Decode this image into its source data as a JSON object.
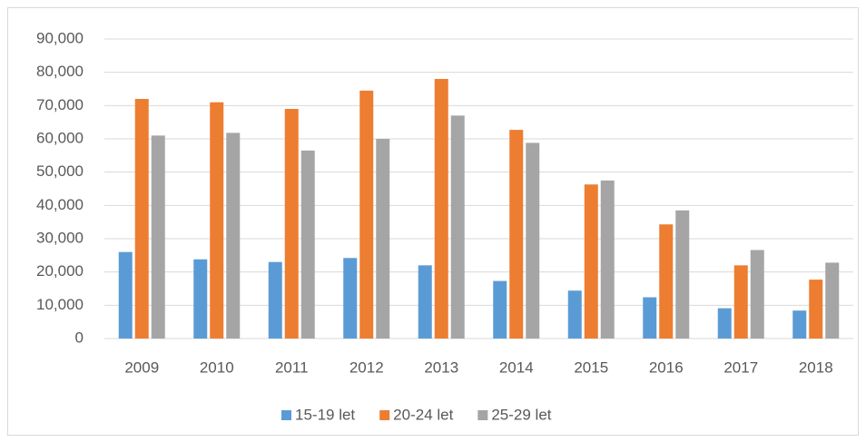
{
  "chart_data": {
    "type": "bar",
    "categories": [
      "2009",
      "2010",
      "2011",
      "2012",
      "2013",
      "2014",
      "2015",
      "2016",
      "2017",
      "2018"
    ],
    "series": [
      {
        "name": "15-19 let",
        "color": "#5b9bd5",
        "values": [
          26000,
          23800,
          23000,
          24200,
          22000,
          17300,
          14400,
          12400,
          9100,
          8400
        ]
      },
      {
        "name": "20-24 let",
        "color": "#ed7d31",
        "values": [
          72000,
          71000,
          69000,
          74500,
          78000,
          62700,
          46300,
          34300,
          22000,
          17700
        ]
      },
      {
        "name": "25-29 let",
        "color": "#a5a5a5",
        "values": [
          61000,
          61800,
          56500,
          60000,
          67000,
          58800,
          47500,
          38500,
          26600,
          22800
        ]
      }
    ],
    "ylim": [
      0,
      90000
    ],
    "yticks": [
      0,
      {
        "value": 10000,
        "label": "10,000"
      },
      {
        "value": 20000,
        "label": "20,000"
      },
      {
        "value": 30000,
        "label": "30,000"
      },
      {
        "value": 40000,
        "label": "40,000"
      },
      {
        "value": 50000,
        "label": "50,000"
      },
      {
        "value": 60000,
        "label": "60,000"
      },
      {
        "value": 70000,
        "label": "70,000"
      },
      {
        "value": 80000,
        "label": "80,000"
      },
      {
        "value": 90000,
        "label": "90,000"
      }
    ],
    "grid": true,
    "legend": "bottom"
  }
}
